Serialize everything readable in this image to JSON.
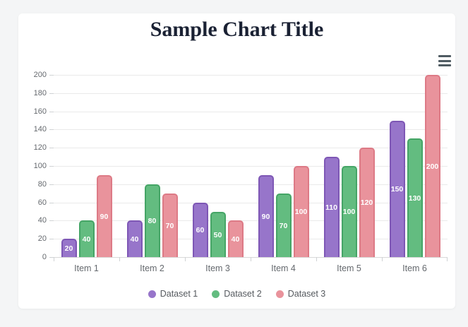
{
  "page": {
    "background_color": "#f4f5f6"
  },
  "card": {
    "background_color": "#ffffff"
  },
  "menu": {
    "icon": "hamburger-icon",
    "color": "#4f5b62"
  },
  "chart_data": {
    "type": "bar",
    "title": "Sample Chart Title",
    "title_color": "#1a2133",
    "categories": [
      "Item 1",
      "Item 2",
      "Item 3",
      "Item 4",
      "Item 5",
      "Item 6"
    ],
    "series": [
      {
        "name": "Dataset 1",
        "fill": "#9775ca",
        "border": "#7e57b5",
        "values": [
          20,
          40,
          60,
          90,
          110,
          150
        ]
      },
      {
        "name": "Dataset 2",
        "fill": "#63bc80",
        "border": "#45a566",
        "values": [
          40,
          80,
          50,
          70,
          100,
          130
        ]
      },
      {
        "name": "Dataset 3",
        "fill": "#e9939c",
        "border": "#dd7a86",
        "values": [
          90,
          70,
          40,
          100,
          120,
          200
        ]
      }
    ],
    "yticks": [
      200,
      180,
      160,
      140,
      120,
      100,
      80,
      60,
      40,
      20,
      0
    ],
    "ylim": [
      0,
      200
    ],
    "grid": true,
    "legend_position": "bottom",
    "data_labels": "white values centered inside bars",
    "axis_text_color": "#65696e",
    "gridline_color": "#eaeaea"
  }
}
